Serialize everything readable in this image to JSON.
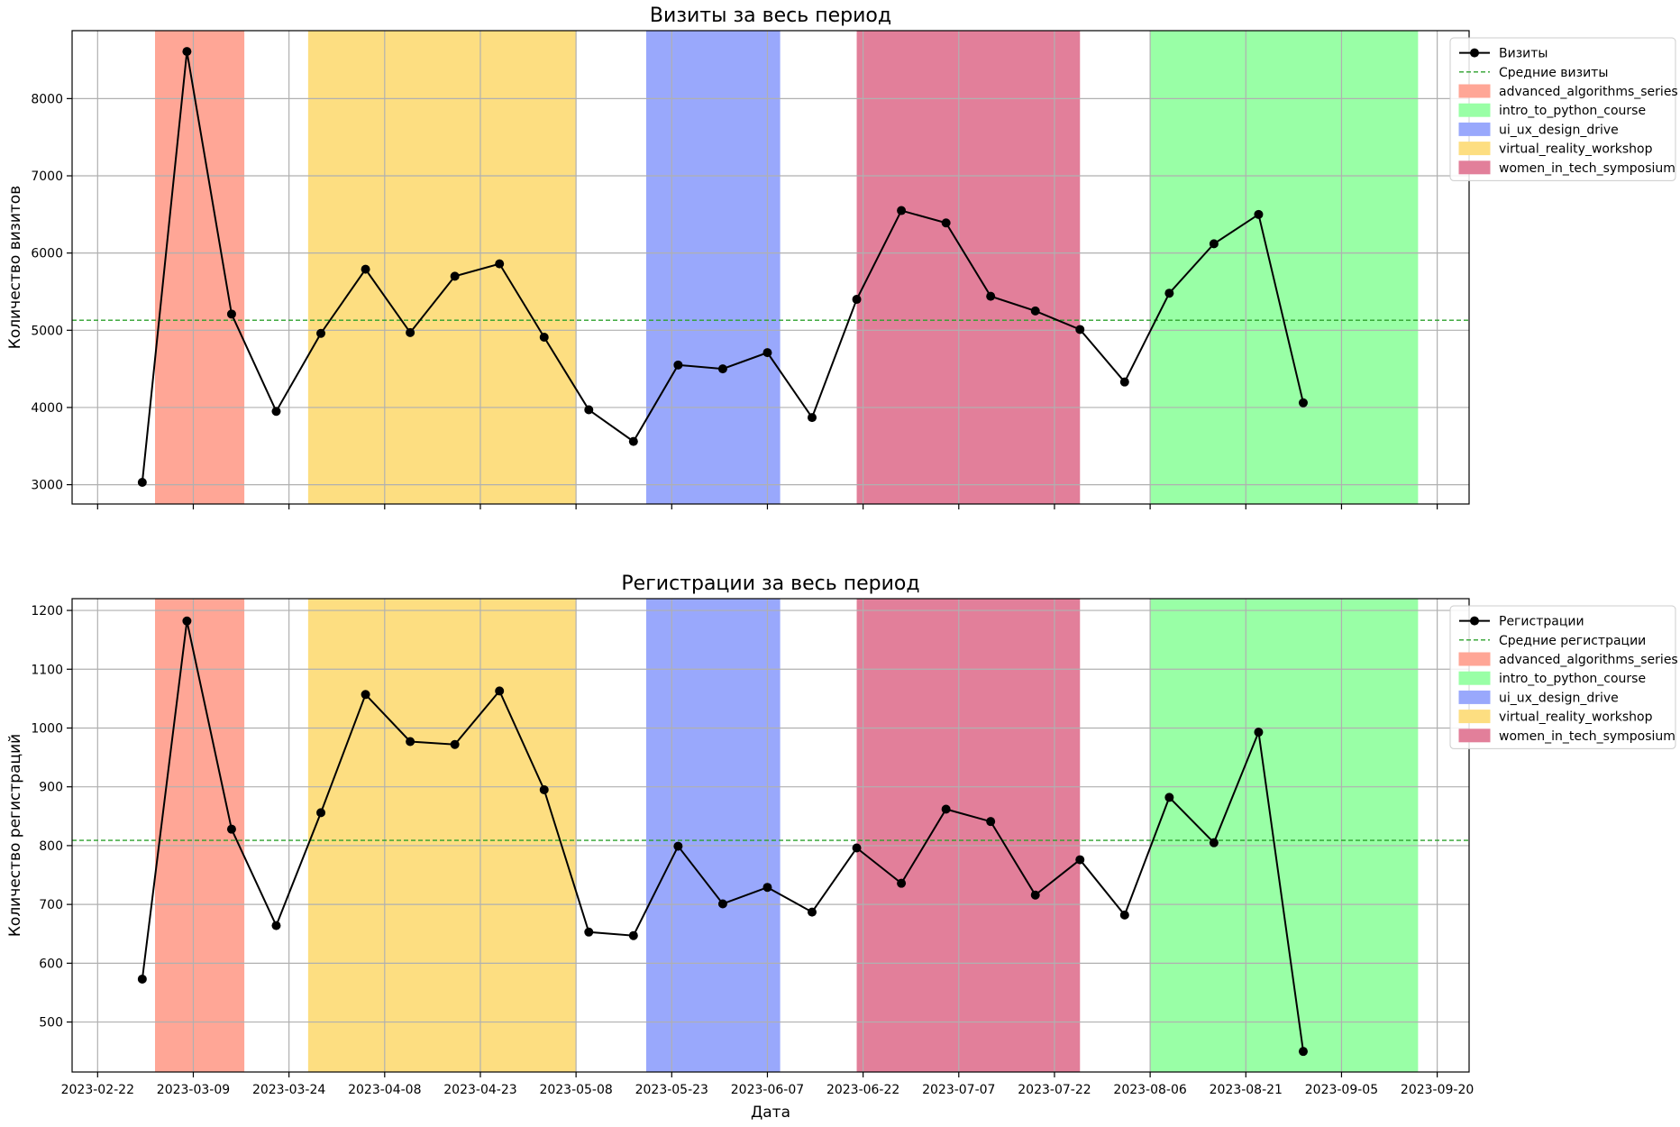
{
  "chart_data": [
    {
      "type": "line",
      "title": "Визиты за весь период",
      "xlabel": "",
      "ylabel": "Количество визитов",
      "ylim": [
        2750,
        8880
      ],
      "yticks": [
        3000,
        4000,
        5000,
        6000,
        7000,
        8000
      ],
      "grid": true,
      "legend_position": "upper right, outside plot",
      "x": [
        "2023-03-01",
        "2023-03-08",
        "2023-03-15",
        "2023-03-22",
        "2023-03-29",
        "2023-04-05",
        "2023-04-12",
        "2023-04-19",
        "2023-04-26",
        "2023-05-03",
        "2023-05-10",
        "2023-05-17",
        "2023-05-24",
        "2023-05-31",
        "2023-06-07",
        "2023-06-14",
        "2023-06-21",
        "2023-06-28",
        "2023-07-05",
        "2023-07-12",
        "2023-07-19",
        "2023-07-26",
        "2023-08-02",
        "2023-08-09",
        "2023-08-16",
        "2023-08-23",
        "2023-08-30"
      ],
      "series": [
        {
          "name": "Визиты",
          "color": "#000000",
          "marker": "circle",
          "values": [
            3030,
            8610,
            5210,
            3950,
            4960,
            5790,
            4970,
            5700,
            5860,
            4910,
            3970,
            3560,
            4550,
            4500,
            4710,
            3870,
            5400,
            6550,
            6390,
            5440,
            5250,
            5010,
            4330,
            5480,
            6120,
            6500,
            4060
          ]
        },
        {
          "name": "Средние визиты",
          "color": "#2ca02c",
          "style": "dashed",
          "constant": 5130
        }
      ],
      "legend_items": [
        {
          "label": "Визиты",
          "kind": "line",
          "color": "#000000"
        },
        {
          "label": "Средние визиты",
          "kind": "dashed",
          "color": "#2ca02c"
        },
        {
          "label": "advanced_algorithms_series",
          "kind": "patch",
          "color": "#ffa696"
        },
        {
          "label": "intro_to_python_course",
          "kind": "patch",
          "color": "#99ffa6"
        },
        {
          "label": "ui_ux_design_drive",
          "kind": "patch",
          "color": "#99a8fc"
        },
        {
          "label": "virtual_reality_workshop",
          "kind": "patch",
          "color": "#fdde81"
        },
        {
          "label": "women_in_tech_symposium",
          "kind": "patch",
          "color": "#e27f9a"
        }
      ]
    },
    {
      "type": "line",
      "title": "Регистрации за весь период",
      "xlabel": "Дата",
      "ylabel": "Количество регистраций",
      "ylim": [
        415,
        1220
      ],
      "yticks": [
        500,
        600,
        700,
        800,
        900,
        1000,
        1100,
        1200
      ],
      "grid": true,
      "legend_position": "upper right, outside plot",
      "x": [
        "2023-03-01",
        "2023-03-08",
        "2023-03-15",
        "2023-03-22",
        "2023-03-29",
        "2023-04-05",
        "2023-04-12",
        "2023-04-19",
        "2023-04-26",
        "2023-05-03",
        "2023-05-10",
        "2023-05-17",
        "2023-05-24",
        "2023-05-31",
        "2023-06-07",
        "2023-06-14",
        "2023-06-21",
        "2023-06-28",
        "2023-07-05",
        "2023-07-12",
        "2023-07-19",
        "2023-07-26",
        "2023-08-02",
        "2023-08-09",
        "2023-08-16",
        "2023-08-23",
        "2023-08-30"
      ],
      "series": [
        {
          "name": "Регистрации",
          "color": "#000000",
          "marker": "circle",
          "values": [
            573,
            1182,
            828,
            664,
            856,
            1057,
            977,
            972,
            1063,
            895,
            653,
            647,
            799,
            701,
            729,
            687,
            796,
            736,
            862,
            841,
            716,
            776,
            682,
            882,
            805,
            993,
            450
          ]
        },
        {
          "name": "Средние регистрации",
          "color": "#2ca02c",
          "style": "dashed",
          "constant": 809
        }
      ],
      "legend_items": [
        {
          "label": "Регистрации",
          "kind": "line",
          "color": "#000000"
        },
        {
          "label": "Средние регистрации",
          "kind": "dashed",
          "color": "#2ca02c"
        },
        {
          "label": "advanced_algorithms_series",
          "kind": "patch",
          "color": "#ffa696"
        },
        {
          "label": "intro_to_python_course",
          "kind": "patch",
          "color": "#99ffa6"
        },
        {
          "label": "ui_ux_design_drive",
          "kind": "patch",
          "color": "#99a8fc"
        },
        {
          "label": "virtual_reality_workshop",
          "kind": "patch",
          "color": "#fdde81"
        },
        {
          "label": "women_in_tech_symposium",
          "kind": "patch",
          "color": "#e27f9a"
        }
      ]
    }
  ],
  "campaigns": [
    {
      "name": "advanced_algorithms_series",
      "start": "2023-03-03",
      "end": "2023-03-17",
      "color": "#ffa696"
    },
    {
      "name": "virtual_reality_workshop",
      "start": "2023-03-27",
      "end": "2023-05-08",
      "color": "#fdde81"
    },
    {
      "name": "ui_ux_design_drive",
      "start": "2023-05-19",
      "end": "2023-06-09",
      "color": "#99a8fc"
    },
    {
      "name": "women_in_tech_symposium",
      "start": "2023-06-21",
      "end": "2023-07-26",
      "color": "#e27f9a"
    },
    {
      "name": "intro_to_python_course",
      "start": "2023-08-06",
      "end": "2023-09-17",
      "color": "#99ffa6"
    }
  ],
  "x_axis": {
    "range": [
      "2023-02-18",
      "2023-09-25"
    ],
    "ticks": [
      "2023-02-22",
      "2023-03-09",
      "2023-03-24",
      "2023-04-08",
      "2023-04-23",
      "2023-05-08",
      "2023-05-23",
      "2023-06-07",
      "2023-06-22",
      "2023-07-07",
      "2023-07-22",
      "2023-08-06",
      "2023-08-21",
      "2023-09-05",
      "2023-09-20"
    ]
  }
}
